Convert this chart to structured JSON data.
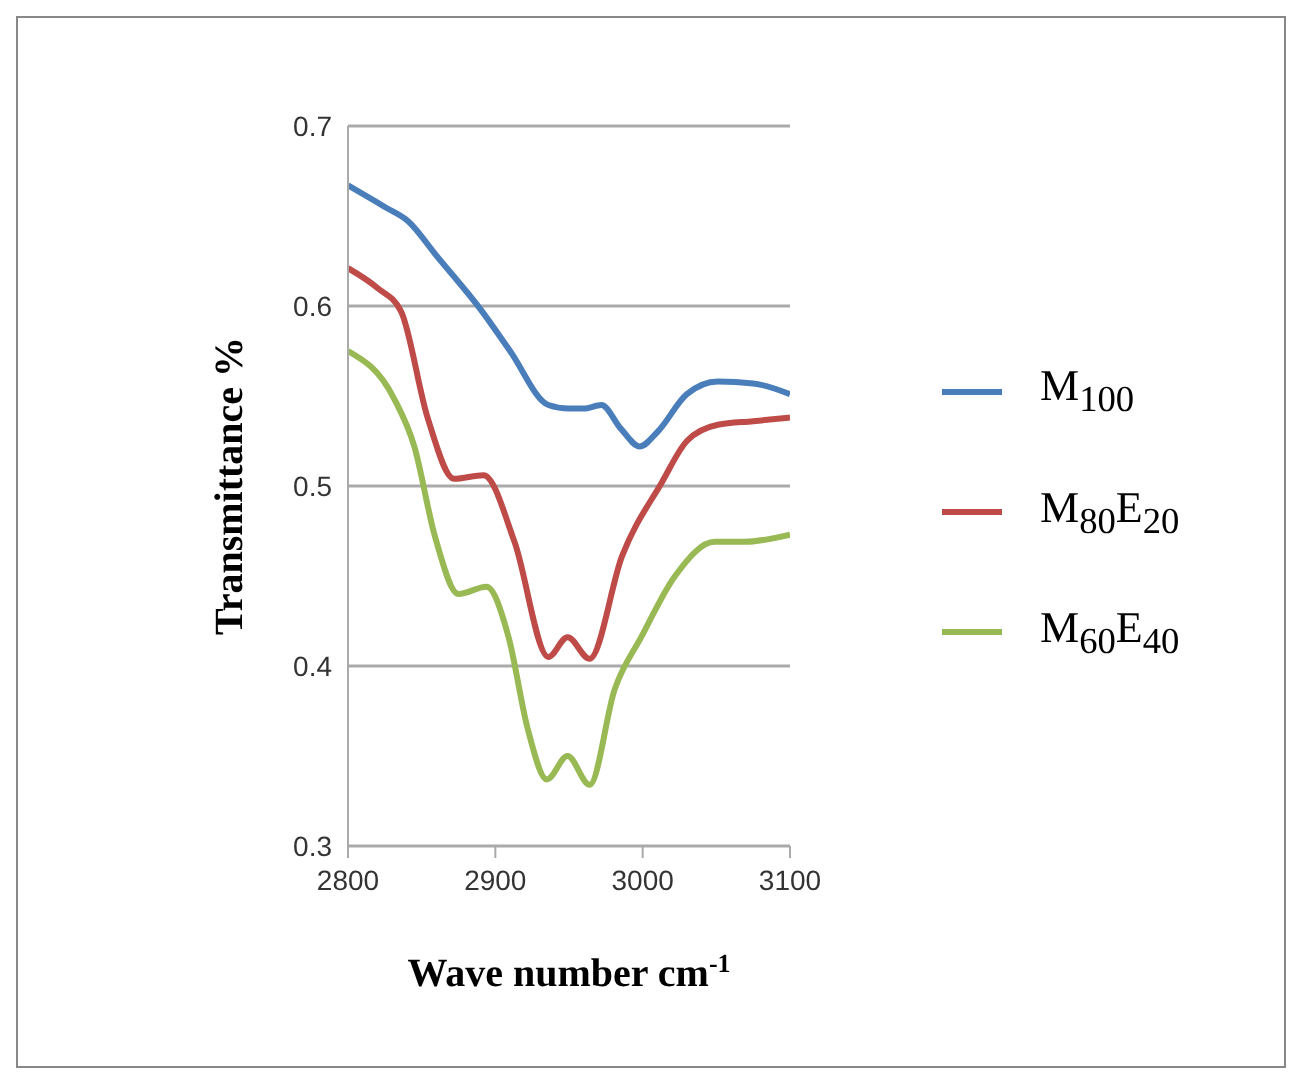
{
  "chart_data": {
    "type": "line",
    "xlabel": "Wave number cm$^{-1}$",
    "ylabel": "Transmittance %",
    "xlim": [
      2800,
      3100
    ],
    "xticks": [
      2800,
      2900,
      3000,
      3100
    ],
    "ylim": [
      0.3,
      0.7
    ],
    "yticks": [
      0.3,
      0.4,
      0.5,
      0.6,
      0.7
    ],
    "grid": "y",
    "legend": "right",
    "marker": "none",
    "line_style": "solid",
    "series": [
      {
        "name": "M$_{100}$",
        "color": "#4a7ebb",
        "x": [
          2800,
          2825,
          2841,
          2860,
          2891,
          2910,
          2936,
          2950,
          2960,
          2972,
          2985,
          2998,
          3010,
          3030,
          3051,
          3075,
          3100
        ],
        "values": [
          0.667,
          0.655,
          0.647,
          0.628,
          0.597,
          0.575,
          0.545,
          0.543,
          0.543,
          0.545,
          0.532,
          0.522,
          0.53,
          0.551,
          0.558,
          0.557,
          0.551
        ]
      },
      {
        "name": "M$_{80}$E$_{20}$",
        "color": "#be4b48",
        "x": [
          2800,
          2820,
          2836,
          2854,
          2872,
          2892,
          2913,
          2936,
          2949,
          2964,
          2986,
          3013,
          3030,
          3051,
          3075,
          3100
        ],
        "values": [
          0.621,
          0.61,
          0.597,
          0.538,
          0.504,
          0.506,
          0.469,
          0.405,
          0.416,
          0.404,
          0.461,
          0.502,
          0.525,
          0.534,
          0.536,
          0.538
        ]
      },
      {
        "name": "M$_{60}$E$_{40}$",
        "color": "#98b954",
        "x": [
          2800,
          2831,
          2845,
          2859,
          2875,
          2894,
          2909,
          2922,
          2935,
          2949,
          2964,
          2981,
          2999,
          3022,
          3049,
          3069,
          3100
        ],
        "values": [
          0.575,
          0.549,
          0.522,
          0.472,
          0.44,
          0.444,
          0.416,
          0.365,
          0.337,
          0.35,
          0.334,
          0.387,
          0.416,
          0.45,
          0.469,
          0.469,
          0.473
        ]
      }
    ]
  }
}
